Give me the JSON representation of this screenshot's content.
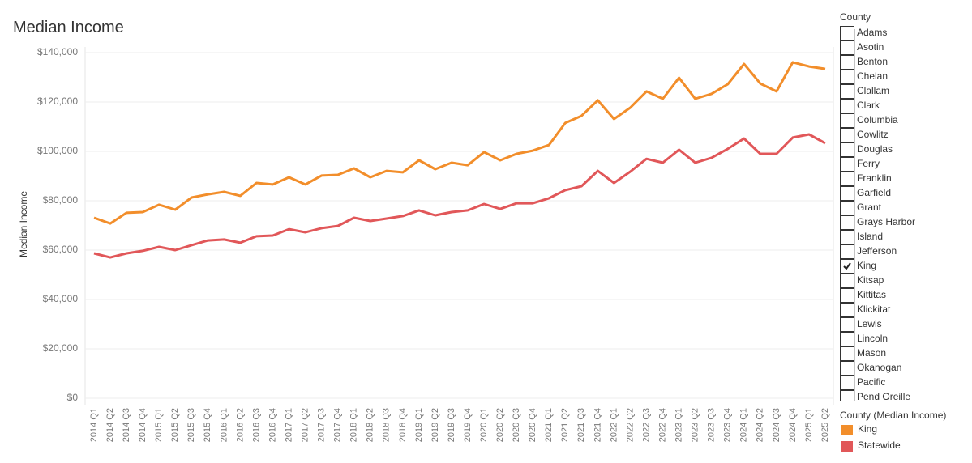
{
  "chart_data": {
    "type": "line",
    "title": "Median Income",
    "y_label": "Median Income",
    "categories": [
      "2014 Q1",
      "2014 Q2",
      "2014 Q3",
      "2014 Q4",
      "2015 Q1",
      "2015 Q2",
      "2015 Q3",
      "2015 Q4",
      "2016 Q1",
      "2016 Q2",
      "2016 Q3",
      "2016 Q4",
      "2017 Q1",
      "2017 Q2",
      "2017 Q3",
      "2017 Q4",
      "2018 Q1",
      "2018 Q2",
      "2018 Q3",
      "2018 Q4",
      "2019 Q1",
      "2019 Q2",
      "2019 Q3",
      "2019 Q4",
      "2020 Q1",
      "2020 Q2",
      "2020 Q3",
      "2020 Q4",
      "2021 Q1",
      "2021 Q2",
      "2021 Q3",
      "2021 Q4",
      "2022 Q1",
      "2022 Q2",
      "2022 Q3",
      "2022 Q4",
      "2023 Q1",
      "2023 Q2",
      "2023 Q3",
      "2023 Q4",
      "2024 Q1",
      "2024 Q2",
      "2024 Q3",
      "2024 Q4",
      "2025 Q1",
      "2025 Q2"
    ],
    "series": [
      {
        "name": "King",
        "color": "#f28e2b",
        "values": [
          73100,
          70800,
          75100,
          75400,
          78400,
          76400,
          81300,
          82600,
          83600,
          82000,
          87200,
          86600,
          89500,
          86600,
          90200,
          90500,
          93100,
          89500,
          92100,
          91500,
          96400,
          92800,
          95400,
          94400,
          99700,
          96400,
          99000,
          100300,
          102600,
          111500,
          114400,
          120700,
          113100,
          117700,
          124300,
          121300,
          129800,
          121300,
          123300,
          127200,
          135400,
          127500,
          124300,
          136100,
          134400,
          133400
        ]
      },
      {
        "name": "Statewide",
        "color": "#e15759",
        "values": [
          58700,
          57000,
          58700,
          59700,
          61300,
          60000,
          62000,
          63900,
          64300,
          63000,
          65600,
          65900,
          68500,
          67200,
          68900,
          69800,
          73100,
          71800,
          72800,
          73800,
          76100,
          74100,
          75400,
          76100,
          78700,
          76700,
          79000,
          79000,
          81000,
          84300,
          85900,
          92100,
          87200,
          91800,
          97000,
          95400,
          100700,
          95400,
          97400,
          101000,
          105200,
          99000,
          99000,
          105600,
          106900,
          103300
        ]
      }
    ],
    "ylim": [
      0,
      140000
    ],
    "yticks": [
      {
        "value": 0,
        "label": "$0"
      },
      {
        "value": 20000,
        "label": "$20,000"
      },
      {
        "value": 40000,
        "label": "$40,000"
      },
      {
        "value": 60000,
        "label": "$60,000"
      },
      {
        "value": 80000,
        "label": "$80,000"
      },
      {
        "value": 100000,
        "label": "$100,000"
      },
      {
        "value": 120000,
        "label": "$120,000"
      },
      {
        "value": 140000,
        "label": "$140,000"
      }
    ],
    "grid": true,
    "legend_title": "County (Median Income)"
  },
  "filter": {
    "title": "County",
    "items": [
      {
        "label": "Adams",
        "checked": false
      },
      {
        "label": "Asotin",
        "checked": false
      },
      {
        "label": "Benton",
        "checked": false
      },
      {
        "label": "Chelan",
        "checked": false
      },
      {
        "label": "Clallam",
        "checked": false
      },
      {
        "label": "Clark",
        "checked": false
      },
      {
        "label": "Columbia",
        "checked": false
      },
      {
        "label": "Cowlitz",
        "checked": false
      },
      {
        "label": "Douglas",
        "checked": false
      },
      {
        "label": "Ferry",
        "checked": false
      },
      {
        "label": "Franklin",
        "checked": false
      },
      {
        "label": "Garfield",
        "checked": false
      },
      {
        "label": "Grant",
        "checked": false
      },
      {
        "label": "Grays Harbor",
        "checked": false
      },
      {
        "label": "Island",
        "checked": false
      },
      {
        "label": "Jefferson",
        "checked": false
      },
      {
        "label": "King",
        "checked": true
      },
      {
        "label": "Kitsap",
        "checked": false
      },
      {
        "label": "Kittitas",
        "checked": false
      },
      {
        "label": "Klickitat",
        "checked": false
      },
      {
        "label": "Lewis",
        "checked": false
      },
      {
        "label": "Lincoln",
        "checked": false
      },
      {
        "label": "Mason",
        "checked": false
      },
      {
        "label": "Okanogan",
        "checked": false
      },
      {
        "label": "Pacific",
        "checked": false
      },
      {
        "label": "Pend Oreille",
        "checked": false
      }
    ]
  }
}
